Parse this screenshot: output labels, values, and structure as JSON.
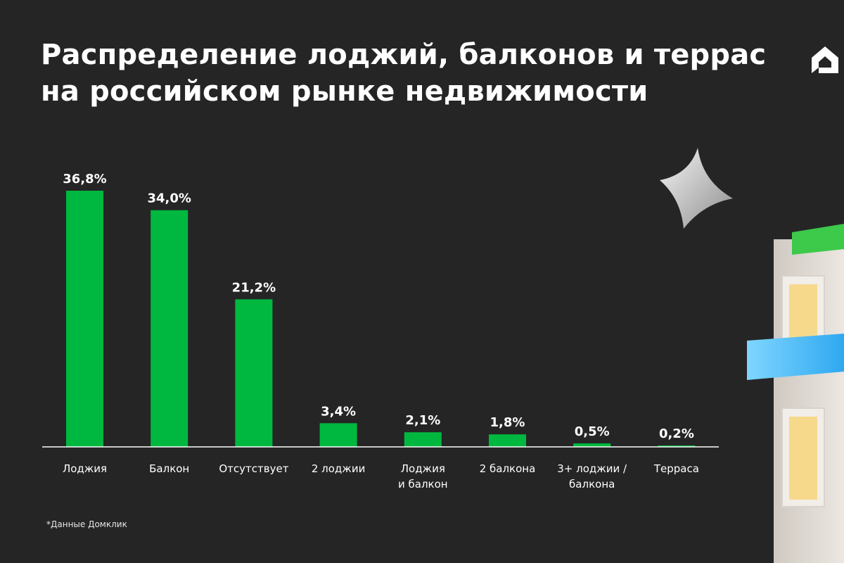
{
  "title": {
    "line1": "Распределение лоджий, балконов и террас",
    "line2": "на российском рынке недвижимости"
  },
  "footnote": "*Данные Домклик",
  "colors": {
    "background": "#252525",
    "bar": "#00b83f",
    "text": "#ffffff",
    "axis": "#ffffff"
  },
  "icons": {
    "logo": "domclick-house-logo-icon",
    "decor_star": "sparkle-star-icon",
    "decor_building": "building-balcony-icon"
  },
  "chart_data": {
    "type": "bar",
    "categories": [
      "Лоджия",
      "Балкон",
      "Отсутствует",
      "2 лоджии",
      "Лоджия\nи балкон",
      "2 балкона",
      "3+ лоджии /\nбалкона",
      "Терраса"
    ],
    "values": [
      36.8,
      34.0,
      21.2,
      3.4,
      2.1,
      1.8,
      0.5,
      0.2
    ],
    "value_labels": [
      "36,8%",
      "34,0%",
      "21,2%",
      "3,4%",
      "2,1%",
      "1,8%",
      "0,5%",
      "0,2%"
    ],
    "unit": "%",
    "ylim": [
      0,
      36.8
    ],
    "grid": false,
    "legend": "none"
  }
}
